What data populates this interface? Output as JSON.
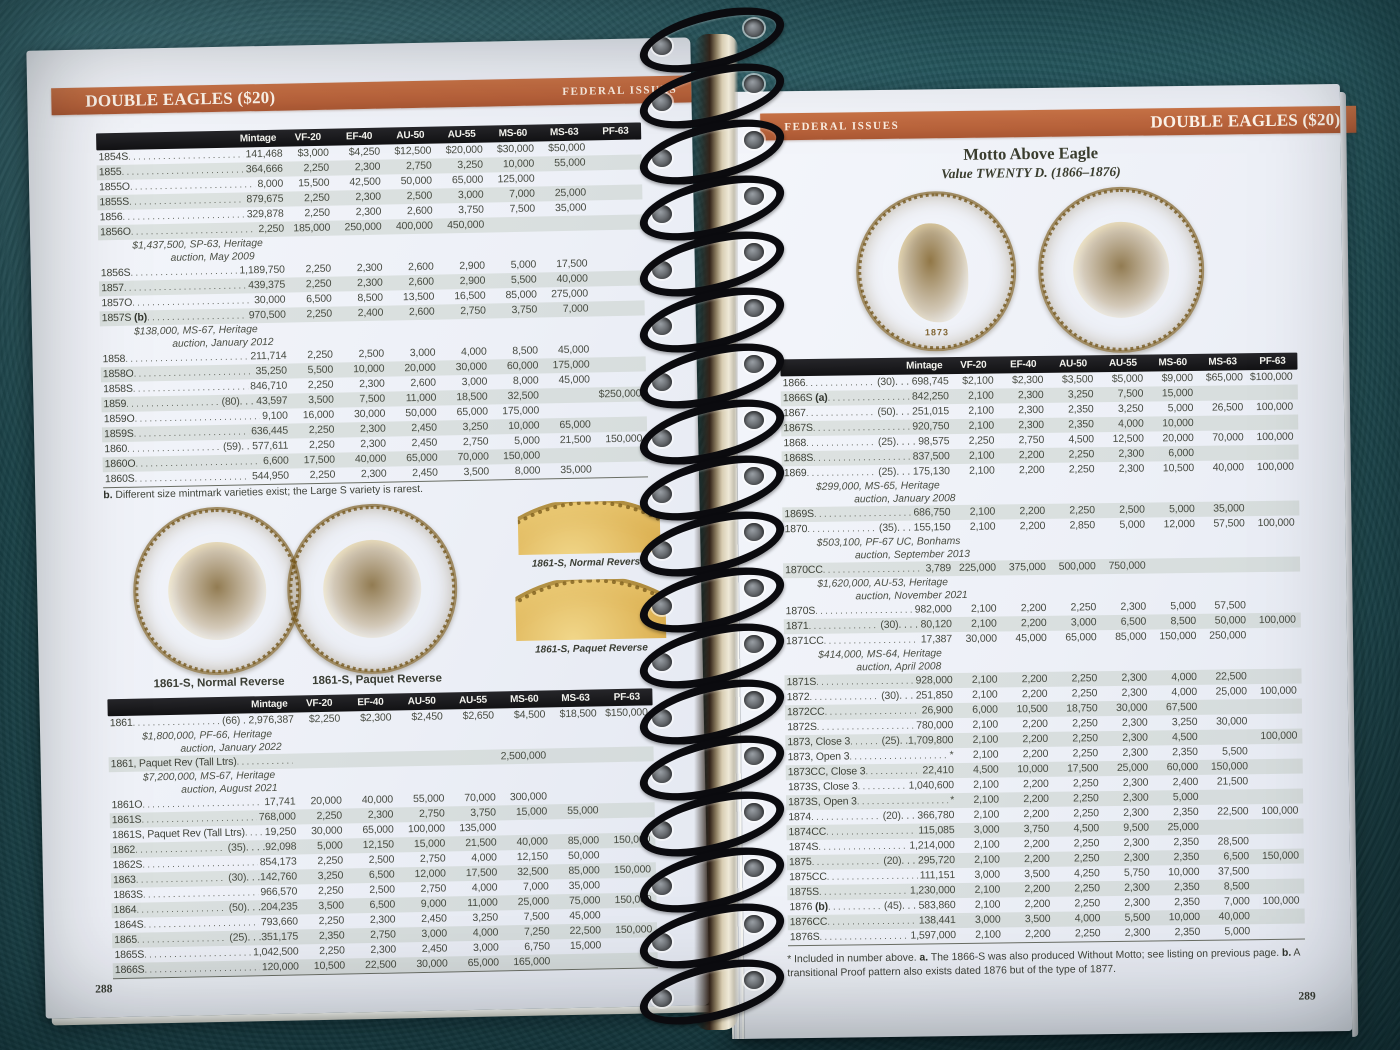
{
  "colors": {
    "accent_bar": "#b7613a",
    "table_header_bar": "#121214",
    "page": "#eef1f7",
    "row_stripe": "#dfe4dd",
    "background_leather": "#235258",
    "coin_gold": "#c79635"
  },
  "left_page": {
    "header": {
      "title": "DOUBLE EAGLES ($20)",
      "running_head": "FEDERAL ISSUES"
    },
    "page_number": "288",
    "table1": {
      "columns": [
        "Mintage",
        "VF-20",
        "EF-40",
        "AU-50",
        "AU-55",
        "MS-60",
        "MS-63",
        "PF-63"
      ],
      "rows": [
        [
          "r",
          "1854S",
          "141,468",
          [
            "$3,000",
            "$4,250",
            "$12,500",
            "$20,000",
            "$30,000",
            "$50,000",
            ""
          ]
        ],
        [
          "r",
          "1855",
          "364,666",
          [
            "2,250",
            "2,300",
            "2,750",
            "3,250",
            "10,000",
            "55,000",
            ""
          ]
        ],
        [
          "r",
          "1855O",
          "8,000",
          [
            "15,500",
            "42,500",
            "50,000",
            "65,000",
            "125,000",
            "",
            ""
          ]
        ],
        [
          "r",
          "1855S",
          "879,675",
          [
            "2,250",
            "2,300",
            "2,500",
            "3,000",
            "7,000",
            "25,000",
            ""
          ]
        ],
        [
          "r",
          "1856",
          "329,878",
          [
            "2,250",
            "2,300",
            "2,600",
            "3,750",
            "7,500",
            "35,000",
            ""
          ]
        ],
        [
          "r",
          "1856O",
          "2,250",
          [
            "185,000",
            "250,000",
            "400,000",
            "450,000",
            "",
            "",
            ""
          ]
        ],
        [
          "n",
          "$1,437,500, SP-63, Heritage",
          "auction, May 2009"
        ],
        [
          "r",
          "1856S",
          "1,189,750",
          [
            "2,250",
            "2,300",
            "2,600",
            "2,900",
            "5,000",
            "17,500",
            ""
          ]
        ],
        [
          "r",
          "1857",
          "439,375",
          [
            "2,250",
            "2,300",
            "2,600",
            "2,900",
            "5,500",
            "40,000",
            ""
          ]
        ],
        [
          "r",
          "1857O",
          "30,000",
          [
            "6,500",
            "8,500",
            "13,500",
            "16,500",
            "85,000",
            "275,000",
            ""
          ]
        ],
        [
          "r",
          "1857S (b)",
          "970,500",
          [
            "2,250",
            "2,400",
            "2,600",
            "2,750",
            "3,750",
            "7,000",
            ""
          ]
        ],
        [
          "n",
          "$138,000, MS-67, Heritage",
          "auction, January 2012"
        ],
        [
          "r",
          "1858",
          "211,714",
          [
            "2,250",
            "2,500",
            "3,000",
            "4,000",
            "8,500",
            "45,000",
            ""
          ]
        ],
        [
          "r",
          "1858O",
          "35,250",
          [
            "5,500",
            "10,000",
            "20,000",
            "30,000",
            "60,000",
            "175,000",
            ""
          ]
        ],
        [
          "r",
          "1858S",
          "846,710",
          [
            "2,250",
            "2,300",
            "2,600",
            "3,000",
            "8,000",
            "45,000",
            ""
          ]
        ],
        [
          "r",
          "1859",
          "(80). . . 43,597",
          [
            "3,500",
            "7,500",
            "11,000",
            "18,500",
            "32,500",
            "",
            "$250,000"
          ]
        ],
        [
          "r",
          "1859O",
          "9,100",
          [
            "16,000",
            "30,000",
            "50,000",
            "65,000",
            "175,000",
            "",
            ""
          ]
        ],
        [
          "r",
          "1859S",
          "636,445",
          [
            "2,250",
            "2,300",
            "2,450",
            "3,250",
            "10,000",
            "65,000",
            ""
          ]
        ],
        [
          "r",
          "1860",
          "(59). . 577,611",
          [
            "2,250",
            "2,300",
            "2,450",
            "2,750",
            "5,000",
            "21,500",
            "150,000"
          ]
        ],
        [
          "r",
          "1860O",
          "6,600",
          [
            "17,500",
            "40,000",
            "65,000",
            "70,000",
            "150,000",
            "",
            ""
          ]
        ],
        [
          "r",
          "1860S",
          "544,950",
          [
            "2,250",
            "2,300",
            "2,450",
            "3,500",
            "8,000",
            "35,000",
            ""
          ]
        ]
      ]
    },
    "footnote_parts": [
      [
        "b",
        "b."
      ],
      [
        "t",
        " Different size mintmark varieties exist; the Large S variety is rarest."
      ]
    ],
    "coin_captions": {
      "coin1": "1861-S, Normal Reverse",
      "coin2": "1861-S, Paquet Reverse",
      "crop1": "1861-S, Normal Reverse",
      "crop2": "1861-S, Paquet Reverse"
    },
    "table2": {
      "columns": [
        "Mintage",
        "VF-20",
        "EF-40",
        "AU-50",
        "AU-55",
        "MS-60",
        "MS-63",
        "PF-63"
      ],
      "rows": [
        [
          "r",
          "1861",
          "(66) . 2,976,387",
          [
            "$2,250",
            "$2,300",
            "$2,450",
            "$2,650",
            "$4,500",
            "$18,500",
            "$150,000"
          ]
        ],
        [
          "n",
          "$1,800,000, PF-66, Heritage",
          "auction, January 2022"
        ],
        [
          "r",
          "1861, Paquet Rev (Tall Ltrs)",
          "",
          [
            "",
            "",
            "",
            "",
            "2,500,000",
            "",
            ""
          ]
        ],
        [
          "n",
          "$7,200,000, MS-67, Heritage",
          "auction, August 2021"
        ],
        [
          "r",
          "1861O",
          "17,741",
          [
            "20,000",
            "40,000",
            "55,000",
            "70,000",
            "300,000",
            "",
            ""
          ]
        ],
        [
          "r",
          "1861S",
          "768,000",
          [
            "2,250",
            "2,300",
            "2,750",
            "3,750",
            "15,000",
            "55,000",
            ""
          ]
        ],
        [
          "r",
          "1861S, Paquet Rev (Tall Ltrs)",
          "19,250",
          [
            "30,000",
            "65,000",
            "100,000",
            "135,000",
            "",
            "",
            ""
          ]
        ],
        [
          "r",
          "1862",
          "(35). . . .92,098",
          [
            "5,000",
            "12,150",
            "15,000",
            "21,500",
            "40,000",
            "85,000",
            "150,000"
          ]
        ],
        [
          "r",
          "1862S",
          "854,173",
          [
            "2,250",
            "2,500",
            "2,750",
            "4,000",
            "12,150",
            "50,000",
            ""
          ]
        ],
        [
          "r",
          "1863",
          "(30). . .142,760",
          [
            "3,250",
            "6,500",
            "12,000",
            "17,500",
            "32,500",
            "85,000",
            "150,000"
          ]
        ],
        [
          "r",
          "1863S",
          "966,570",
          [
            "2,250",
            "2,500",
            "2,750",
            "4,000",
            "7,000",
            "35,000",
            ""
          ]
        ],
        [
          "r",
          "1864",
          "(50). . .204,235",
          [
            "3,500",
            "6,500",
            "9,000",
            "11,000",
            "25,000",
            "75,000",
            "150,000"
          ]
        ],
        [
          "r",
          "1864S",
          "793,660",
          [
            "2,250",
            "2,300",
            "2,450",
            "3,250",
            "7,500",
            "45,000",
            ""
          ]
        ],
        [
          "r",
          "1865",
          "(25). . .351,175",
          [
            "2,350",
            "2,750",
            "3,000",
            "4,000",
            "7,250",
            "22,500",
            "150,000"
          ]
        ],
        [
          "r",
          "1865S",
          "1,042,500",
          [
            "2,250",
            "2,300",
            "2,450",
            "3,000",
            "6,750",
            "15,000",
            ""
          ]
        ],
        [
          "r",
          "1866S",
          "120,000",
          [
            "10,500",
            "22,500",
            "30,000",
            "65,000",
            "165,000",
            "",
            ""
          ]
        ]
      ]
    }
  },
  "right_page": {
    "header": {
      "running_head": "FEDERAL ISSUES",
      "title": "DOUBLE EAGLES ($20)"
    },
    "section_title": "Motto Above Eagle",
    "section_subtitle": "Value TWENTY D. (1866–1876)",
    "coin_date": "1873",
    "page_number": "289",
    "table": {
      "columns": [
        "Mintage",
        "VF-20",
        "EF-40",
        "AU-50",
        "AU-55",
        "MS-60",
        "MS-63",
        "PF-63"
      ],
      "rows": [
        [
          "r",
          "1866",
          "(30). . . 698,745",
          [
            "$2,100",
            "$2,300",
            "$3,500",
            "$5,000",
            "$9,000",
            "$65,000",
            "$100,000"
          ]
        ],
        [
          "r",
          "1866S (a)",
          "842,250",
          [
            "2,100",
            "2,300",
            "3,250",
            "7,500",
            "15,000",
            "",
            ""
          ]
        ],
        [
          "r",
          "1867",
          "(50). . . 251,015",
          [
            "2,100",
            "2,300",
            "2,350",
            "3,250",
            "5,000",
            "26,500",
            "100,000"
          ]
        ],
        [
          "r",
          "1867S",
          "920,750",
          [
            "2,100",
            "2,300",
            "2,350",
            "4,000",
            "10,000",
            "",
            ""
          ]
        ],
        [
          "r",
          "1868",
          "(25). . . . 98,575",
          [
            "2,250",
            "2,750",
            "4,500",
            "12,500",
            "20,000",
            "70,000",
            "100,000"
          ]
        ],
        [
          "r",
          "1868S",
          "837,500",
          [
            "2,100",
            "2,200",
            "2,250",
            "2,300",
            "6,000",
            "",
            ""
          ]
        ],
        [
          "r",
          "1869",
          "(25). . . 175,130",
          [
            "2,100",
            "2,200",
            "2,250",
            "2,300",
            "10,500",
            "40,000",
            "100,000"
          ]
        ],
        [
          "n",
          "$299,000, MS-65, Heritage",
          "auction, January 2008"
        ],
        [
          "r",
          "1869S",
          "686,750",
          [
            "2,100",
            "2,200",
            "2,250",
            "2,500",
            "5,000",
            "35,000",
            ""
          ]
        ],
        [
          "r",
          "1870",
          "(35). . . 155,150",
          [
            "2,100",
            "2,200",
            "2,850",
            "5,000",
            "12,000",
            "57,500",
            "100,000"
          ]
        ],
        [
          "n",
          "$503,100, PF-67 UC, Bonhams",
          "auction, September 2013"
        ],
        [
          "r",
          "1870CC",
          "3,789",
          [
            "225,000",
            "375,000",
            "500,000",
            "750,000",
            "",
            "",
            ""
          ]
        ],
        [
          "n",
          "$1,620,000, AU-53, Heritage",
          "auction, November 2021"
        ],
        [
          "r",
          "1870S",
          "982,000",
          [
            "2,100",
            "2,200",
            "2,250",
            "2,300",
            "5,000",
            "57,500",
            ""
          ]
        ],
        [
          "r",
          "1871",
          "(30). . . . 80,120",
          [
            "2,100",
            "2,200",
            "3,000",
            "6,500",
            "8,500",
            "50,000",
            "100,000"
          ]
        ],
        [
          "r",
          "1871CC",
          "17,387",
          [
            "30,000",
            "45,000",
            "65,000",
            "85,000",
            "150,000",
            "250,000",
            ""
          ]
        ],
        [
          "n",
          "$414,000, MS-64, Heritage",
          "auction, April 2008"
        ],
        [
          "r",
          "1871S",
          "928,000",
          [
            "2,100",
            "2,200",
            "2,250",
            "2,300",
            "4,000",
            "22,500",
            ""
          ]
        ],
        [
          "r",
          "1872",
          "(30). . . 251,850",
          [
            "2,100",
            "2,200",
            "2,250",
            "2,300",
            "4,000",
            "25,000",
            "100,000"
          ]
        ],
        [
          "r",
          "1872CC",
          "26,900",
          [
            "6,000",
            "10,500",
            "18,750",
            "30,000",
            "67,500",
            "",
            ""
          ]
        ],
        [
          "r",
          "1872S",
          "780,000",
          [
            "2,100",
            "2,200",
            "2,250",
            "2,300",
            "3,250",
            "30,000",
            ""
          ]
        ],
        [
          "r",
          "1873, Close 3",
          "(25). .1,709,800",
          [
            "2,100",
            "2,200",
            "2,250",
            "2,300",
            "4,500",
            "",
            "100,000"
          ]
        ],
        [
          "r",
          "1873, Open 3",
          "*",
          [
            "2,100",
            "2,200",
            "2,250",
            "2,300",
            "2,350",
            "5,500",
            ""
          ]
        ],
        [
          "r",
          "1873CC, Close 3",
          "22,410",
          [
            "4,500",
            "10,000",
            "17,500",
            "25,000",
            "60,000",
            "150,000",
            ""
          ]
        ],
        [
          "r",
          "1873S, Close 3",
          "1,040,600",
          [
            "2,100",
            "2,200",
            "2,250",
            "2,300",
            "2,400",
            "21,500",
            ""
          ]
        ],
        [
          "r",
          "1873S, Open 3",
          "*",
          [
            "2,100",
            "2,200",
            "2,250",
            "2,300",
            "5,000",
            "",
            ""
          ]
        ],
        [
          "r",
          "1874",
          "(20). . . 366,780",
          [
            "2,100",
            "2,200",
            "2,250",
            "2,300",
            "2,350",
            "22,500",
            "100,000"
          ]
        ],
        [
          "r",
          "1874CC",
          "115,085",
          [
            "3,000",
            "3,750",
            "4,500",
            "9,500",
            "25,000",
            "",
            ""
          ]
        ],
        [
          "r",
          "1874S",
          "1,214,000",
          [
            "2,100",
            "2,200",
            "2,250",
            "2,300",
            "2,350",
            "28,500",
            ""
          ]
        ],
        [
          "r",
          "1875",
          "(20). . . 295,720",
          [
            "2,100",
            "2,200",
            "2,250",
            "2,300",
            "2,350",
            "6,500",
            "150,000"
          ]
        ],
        [
          "r",
          "1875CC",
          "111,151",
          [
            "3,000",
            "3,500",
            "4,250",
            "5,750",
            "10,000",
            "37,500",
            ""
          ]
        ],
        [
          "r",
          "1875S",
          "1,230,000",
          [
            "2,100",
            "2,200",
            "2,250",
            "2,300",
            "2,350",
            "8,500",
            ""
          ]
        ],
        [
          "r",
          "1876 (b)",
          "(45). . . 583,860",
          [
            "2,100",
            "2,200",
            "2,250",
            "2,300",
            "2,350",
            "7,000",
            "100,000"
          ]
        ],
        [
          "r",
          "1876CC",
          "138,441",
          [
            "3,000",
            "3,500",
            "4,000",
            "5,500",
            "10,000",
            "40,000",
            ""
          ]
        ],
        [
          "r",
          "1876S",
          "1,597,000",
          [
            "2,100",
            "2,200",
            "2,250",
            "2,300",
            "2,350",
            "5,000",
            ""
          ]
        ]
      ]
    },
    "footnote_parts": [
      [
        "t",
        "* Included in number above. "
      ],
      [
        "b",
        "a."
      ],
      [
        "t",
        " The 1866-S was also produced Without Motto; see listing on previous page. "
      ],
      [
        "b",
        "b."
      ],
      [
        "t",
        " A transitional Proof pattern also exists dated 1876 but of the type of 1877."
      ]
    ]
  }
}
